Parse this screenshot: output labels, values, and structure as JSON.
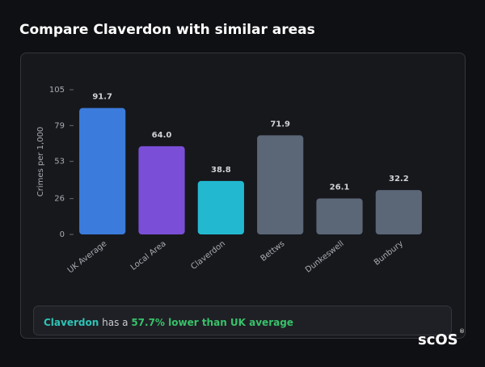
{
  "chart_data": {
    "type": "bar",
    "title": "Compare Claverdon with similar areas",
    "y_label": "Crimes per 1,000",
    "categories": [
      "UK Average",
      "Local Area",
      "Claverdon",
      "Bettws",
      "Dunkeswell",
      "Bunbury"
    ],
    "values": [
      91.7,
      64.0,
      38.8,
      71.9,
      26.1,
      32.2
    ],
    "value_labels": [
      "91.7",
      "64.0",
      "38.8",
      "71.9",
      "26.1",
      "32.2"
    ],
    "colors": [
      "#3b7bdc",
      "#7b4ed8",
      "#22b9d0",
      "#5b6677",
      "#5b6677",
      "#5b6677"
    ],
    "ylim": [
      0,
      105
    ],
    "yticks": [
      0,
      26,
      53,
      79,
      105
    ]
  },
  "summary": {
    "area": "Claverdon",
    "text": "has a",
    "highlight": "57.7% lower than UK average"
  },
  "logo": {
    "text": "scOS",
    "mark": "®"
  }
}
